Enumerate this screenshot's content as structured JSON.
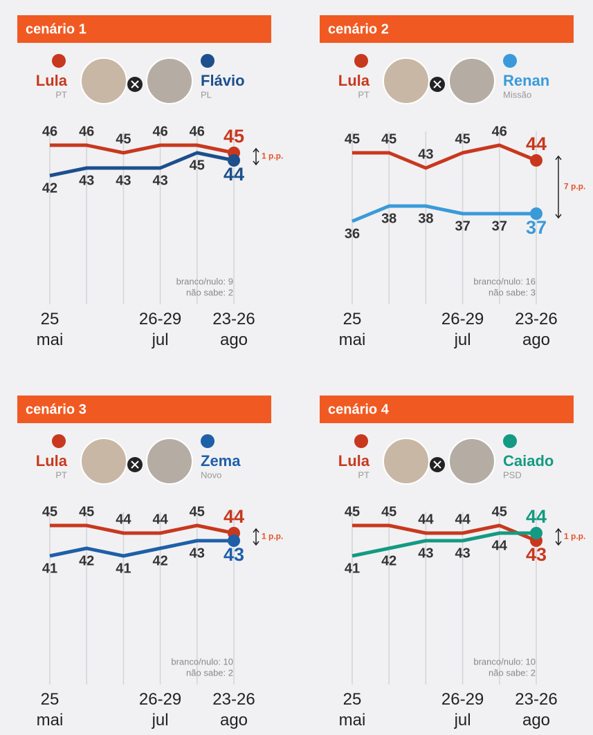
{
  "chart_data": [
    {
      "type": "line",
      "title": "cenário 1",
      "categories": [
        "25 mai",
        null,
        null,
        "26-29 jul",
        null,
        "23-26 ago"
      ],
      "series": [
        {
          "name": "Lula",
          "party": "PT",
          "color": "#c8381e",
          "values": [
            46,
            46,
            45,
            46,
            46,
            45
          ]
        },
        {
          "name": "Flávio",
          "party": "PL",
          "color": "#1c4f8c",
          "values": [
            42,
            43,
            43,
            43,
            45,
            44
          ]
        }
      ],
      "annotation": "1 p.p.",
      "notes": [
        "branco/nulo: 9",
        "não sabe: 2"
      ]
    },
    {
      "type": "line",
      "title": "cenário 2",
      "categories": [
        "25 mai",
        null,
        null,
        "26-29 jul",
        null,
        "23-26 ago"
      ],
      "series": [
        {
          "name": "Lula",
          "party": "PT",
          "color": "#c8381e",
          "values": [
            45,
            45,
            43,
            45,
            46,
            44
          ]
        },
        {
          "name": "Renan",
          "party": "Missão",
          "color": "#3a9ad9",
          "values": [
            36,
            38,
            38,
            37,
            37,
            37
          ]
        }
      ],
      "annotation": "7 p.p.",
      "notes": [
        "branco/nulo: 16",
        "não sabe: 3"
      ]
    },
    {
      "type": "line",
      "title": "cenário 3",
      "categories": [
        "25 mai",
        null,
        null,
        "26-29 jul",
        null,
        "23-26 ago"
      ],
      "series": [
        {
          "name": "Lula",
          "party": "PT",
          "color": "#c8381e",
          "values": [
            45,
            45,
            44,
            44,
            45,
            44
          ]
        },
        {
          "name": "Zema",
          "party": "Novo",
          "color": "#1e5fa8",
          "values": [
            41,
            42,
            41,
            42,
            43,
            43
          ]
        }
      ],
      "annotation": "1 p.p.",
      "notes": [
        "branco/nulo: 10",
        "não sabe: 2"
      ]
    },
    {
      "type": "line",
      "title": "cenário 4",
      "categories": [
        "25 mai",
        null,
        null,
        "26-29 jul",
        null,
        "23-26 ago"
      ],
      "series": [
        {
          "name": "Lula",
          "party": "PT",
          "color": "#c8381e",
          "values": [
            45,
            45,
            44,
            44,
            45,
            43
          ]
        },
        {
          "name": "Caiado",
          "party": "PSD",
          "color": "#149a82",
          "values": [
            41,
            42,
            43,
            43,
            44,
            44
          ]
        }
      ],
      "annotation": "1 p.p.",
      "notes": [
        "branco/nulo: 10",
        "não sabe: 2"
      ]
    }
  ]
}
